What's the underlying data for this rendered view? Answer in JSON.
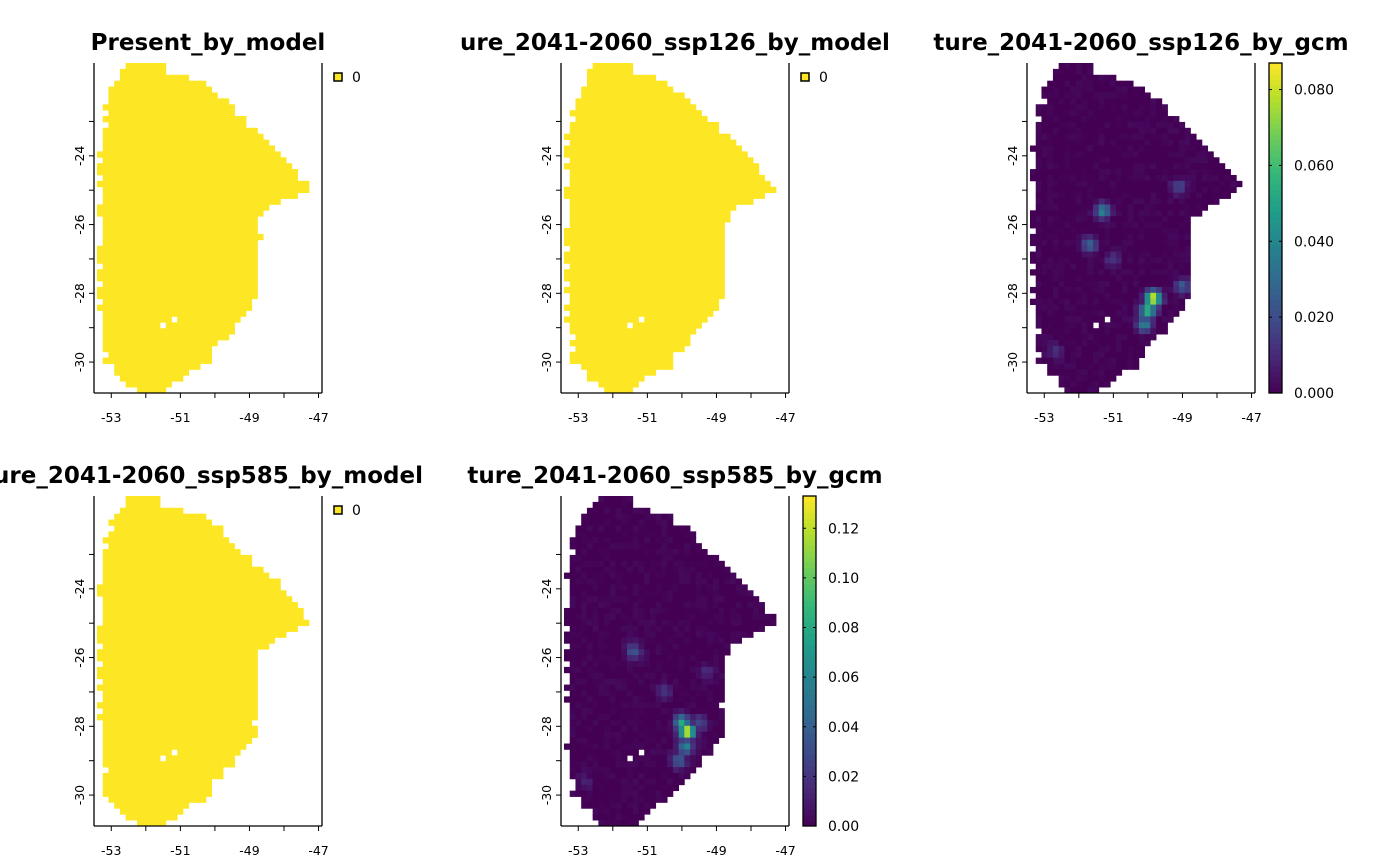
{
  "chart_data": [
    {
      "type": "heatmap",
      "title": "Present_by_model",
      "x_ticks": [
        "-53",
        "-51",
        "-49",
        "-47"
      ],
      "y_ticks": [
        "-24",
        "-26",
        "-28",
        "-30"
      ],
      "xlim": [
        -53.5,
        -46.9
      ],
      "ylim": [
        -30.9,
        -21.3
      ],
      "legend": {
        "kind": "categorical",
        "placement": "right",
        "entries": [
          {
            "label": "0",
            "color": "#FDE725"
          }
        ]
      },
      "fill_color": "#FDE725"
    },
    {
      "type": "heatmap",
      "title": "ure_2041-2060_ssp126_by_model",
      "x_ticks": [
        "-53",
        "-51",
        "-49",
        "-47"
      ],
      "y_ticks": [
        "-24",
        "-26",
        "-28",
        "-30"
      ],
      "xlim": [
        -53.5,
        -46.9
      ],
      "ylim": [
        -30.9,
        -21.3
      ],
      "legend": {
        "kind": "categorical",
        "placement": "right",
        "entries": [
          {
            "label": "0",
            "color": "#FDE725"
          }
        ]
      },
      "fill_color": "#FDE725"
    },
    {
      "type": "heatmap",
      "title": "ture_2041-2060_ssp126_by_gcm",
      "x_ticks": [
        "-53",
        "-51",
        "-49",
        "-47"
      ],
      "y_ticks": [
        "-24",
        "-26",
        "-28",
        "-30"
      ],
      "xlim": [
        -53.5,
        -46.9
      ],
      "ylim": [
        -30.9,
        -21.3
      ],
      "legend": {
        "kind": "continuous",
        "placement": "right",
        "range": [
          0,
          0.087
        ],
        "tick_values": [
          0,
          0.02,
          0.04,
          0.06,
          0.08
        ],
        "tick_labels": [
          "0.000",
          "0.020",
          "0.040",
          "0.060",
          "0.080"
        ],
        "colorscale": "viridis"
      },
      "hotspots": [
        {
          "lon": -49.85,
          "lat": -28.15,
          "value": 0.087
        },
        {
          "lon": -50.0,
          "lat": -28.5,
          "value": 0.06
        },
        {
          "lon": -50.1,
          "lat": -28.9,
          "value": 0.04
        },
        {
          "lon": -51.3,
          "lat": -25.6,
          "value": 0.04
        },
        {
          "lon": -51.7,
          "lat": -26.6,
          "value": 0.03
        },
        {
          "lon": -49.1,
          "lat": -24.9,
          "value": 0.02
        },
        {
          "lon": -49.0,
          "lat": -27.8,
          "value": 0.025
        },
        {
          "lon": -51.0,
          "lat": -27.0,
          "value": 0.015
        },
        {
          "lon": -52.7,
          "lat": -29.7,
          "value": 0.012
        }
      ]
    },
    {
      "type": "heatmap",
      "title": "ure_2041-2060_ssp585_by_model",
      "x_ticks": [
        "-53",
        "-51",
        "-49",
        "-47"
      ],
      "y_ticks": [
        "-24",
        "-26",
        "-28",
        "-30"
      ],
      "xlim": [
        -53.5,
        -46.9
      ],
      "ylim": [
        -30.9,
        -21.3
      ],
      "legend": {
        "kind": "categorical",
        "placement": "right",
        "entries": [
          {
            "label": "0",
            "color": "#FDE725"
          }
        ]
      },
      "fill_color": "#FDE725"
    },
    {
      "type": "heatmap",
      "title": "ture_2041-2060_ssp585_by_gcm",
      "x_ticks": [
        "-53",
        "-51",
        "-49",
        "-47"
      ],
      "y_ticks": [
        "-24",
        "-26",
        "-28",
        "-30"
      ],
      "xlim": [
        -53.5,
        -46.9
      ],
      "ylim": [
        -30.9,
        -21.3
      ],
      "legend": {
        "kind": "continuous",
        "placement": "right",
        "range": [
          0,
          0.133
        ],
        "tick_values": [
          0,
          0.02,
          0.04,
          0.06,
          0.08,
          0.1,
          0.12
        ],
        "tick_labels": [
          "0.00",
          "0.02",
          "0.04",
          "0.06",
          "0.08",
          "0.10",
          "0.12"
        ],
        "colorscale": "viridis"
      },
      "hotspots": [
        {
          "lon": -49.85,
          "lat": -28.15,
          "value": 0.133
        },
        {
          "lon": -50.0,
          "lat": -27.9,
          "value": 0.08
        },
        {
          "lon": -49.9,
          "lat": -28.6,
          "value": 0.06
        },
        {
          "lon": -50.1,
          "lat": -29.0,
          "value": 0.04
        },
        {
          "lon": -51.4,
          "lat": -25.8,
          "value": 0.035
        },
        {
          "lon": -49.5,
          "lat": -27.9,
          "value": 0.03
        },
        {
          "lon": -50.5,
          "lat": -27.0,
          "value": 0.02
        },
        {
          "lon": -49.3,
          "lat": -26.4,
          "value": 0.015
        },
        {
          "lon": -52.8,
          "lat": -29.6,
          "value": 0.012
        }
      ]
    }
  ]
}
